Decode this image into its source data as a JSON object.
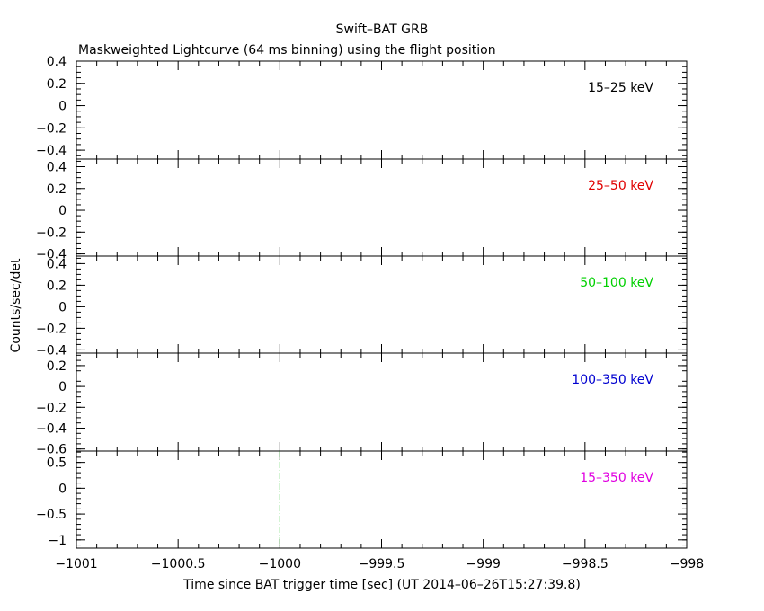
{
  "chart_data": {
    "type": "line",
    "title": "Swift–BAT GRB",
    "subtitle": "Maskweighted Lightcurve (64 ms binning) using the flight position",
    "xlabel": "Time since BAT trigger time [sec] (UT 2014–06–26T15:27:39.8)",
    "ylabel": "Counts/sec/det",
    "xlim": [
      -1001,
      -998
    ],
    "x_ticks": [
      {
        "v": -1001,
        "label": "−1001"
      },
      {
        "v": -1000.5,
        "label": "−1000.5"
      },
      {
        "v": -1000,
        "label": "−1000"
      },
      {
        "v": -999.5,
        "label": "−999.5"
      },
      {
        "v": -999,
        "label": "−999"
      },
      {
        "v": -998.5,
        "label": "−998.5"
      },
      {
        "v": -998,
        "label": "−998"
      }
    ],
    "trigger_line_x": -1000,
    "trigger_line_color": "#00c000",
    "panels": [
      {
        "band": "15–25 keV",
        "color": "#000000",
        "ylim": [
          -0.48,
          0.4
        ],
        "y_ticks": [
          {
            "v": 0.4,
            "label": "0.4"
          },
          {
            "v": 0.2,
            "label": "0.2"
          },
          {
            "v": 0,
            "label": "0"
          },
          {
            "v": -0.2,
            "label": "−0.2"
          },
          {
            "v": -0.4,
            "label": "−0.4"
          }
        ],
        "minor_step": 0.05,
        "show_trigger": false
      },
      {
        "band": "25–50 keV",
        "color": "#e00000",
        "ylim": [
          -0.42,
          0.47
        ],
        "y_ticks": [
          {
            "v": 0.4,
            "label": "0.4"
          },
          {
            "v": 0.2,
            "label": "0.2"
          },
          {
            "v": 0,
            "label": "0"
          },
          {
            "v": -0.2,
            "label": "−0.2"
          },
          {
            "v": -0.4,
            "label": "−0.4"
          }
        ],
        "minor_step": 0.05,
        "show_trigger": false
      },
      {
        "band": "50–100 keV",
        "color": "#00d000",
        "ylim": [
          -0.43,
          0.47
        ],
        "y_ticks": [
          {
            "v": 0.4,
            "label": "0.4"
          },
          {
            "v": 0.2,
            "label": "0.2"
          },
          {
            "v": 0,
            "label": "0"
          },
          {
            "v": -0.2,
            "label": "−0.2"
          },
          {
            "v": -0.4,
            "label": "−0.4"
          }
        ],
        "minor_step": 0.05,
        "show_trigger": false
      },
      {
        "band": "100–350 keV",
        "color": "#0000d0",
        "ylim": [
          -0.62,
          0.32
        ],
        "y_ticks": [
          {
            "v": 0.2,
            "label": "0.2"
          },
          {
            "v": 0,
            "label": "0"
          },
          {
            "v": -0.2,
            "label": "−0.2"
          },
          {
            "v": -0.4,
            "label": "−0.4"
          },
          {
            "v": -0.6,
            "label": "−0.6"
          }
        ],
        "minor_step": 0.05,
        "show_trigger": false
      },
      {
        "band": "15–350 keV",
        "color": "#e000e0",
        "ylim": [
          -1.16,
          0.72
        ],
        "y_ticks": [
          {
            "v": 0.5,
            "label": "0.5"
          },
          {
            "v": 0,
            "label": "0"
          },
          {
            "v": -0.5,
            "label": "−0.5"
          },
          {
            "v": -1,
            "label": "−1"
          }
        ],
        "minor_step": 0.1,
        "show_trigger": true
      }
    ]
  }
}
